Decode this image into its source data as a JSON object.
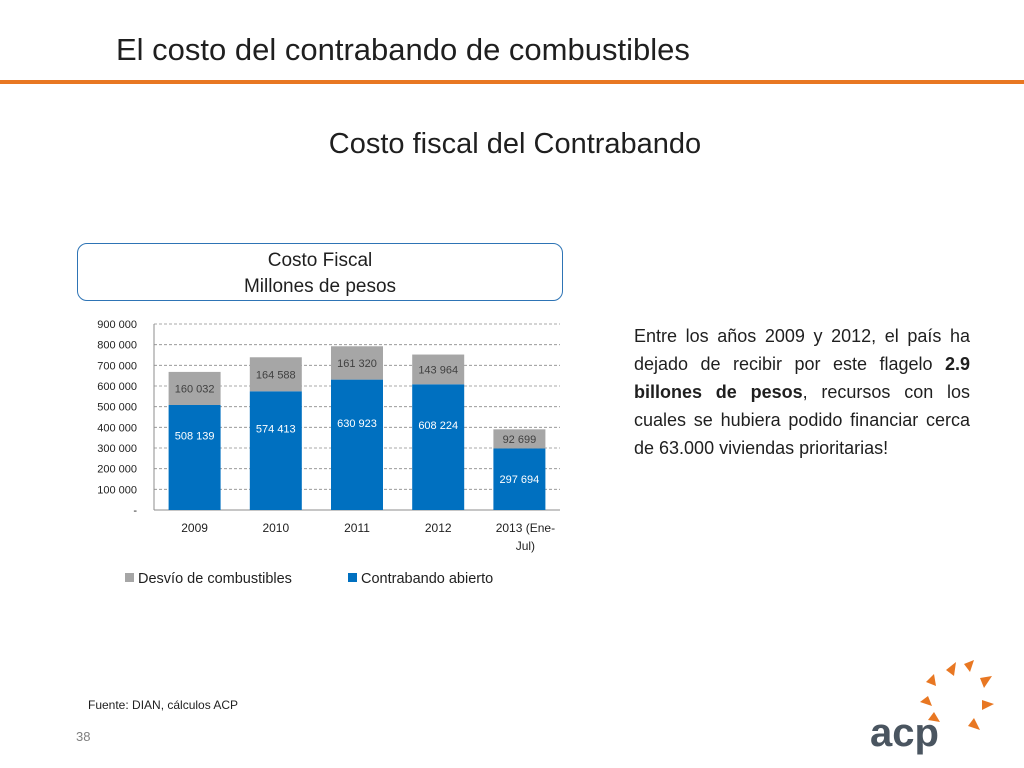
{
  "slide": {
    "title": "El costo del contrabando de combustibles",
    "subtitle": "Costo fiscal del Contrabando",
    "source": "Fuente: DIAN, cálculos ACP",
    "page_number": "38"
  },
  "chart_box": {
    "line1": "Costo Fiscal",
    "line2": "Millones de pesos"
  },
  "body_text": {
    "before": "Entre los años 2009 y 2012, el país ha dejado de recibir por este flagelo ",
    "bold": "2.9 billones de pesos",
    "after": ", recursos con los cuales se hubiera podido financiar cerca de 63.000 viviendas prioritarias!"
  },
  "logo": {
    "text": "acp",
    "name": "acp-logo"
  },
  "colors": {
    "accent": "#e87722",
    "series_open": "#0070c0",
    "series_desvio": "#a6a6a6",
    "border": "#2e74b5"
  },
  "chart_data": {
    "type": "bar",
    "stacked": true,
    "categories": [
      "2009",
      "2010",
      "2011",
      "2012",
      "2013 (Ene-Jul)"
    ],
    "category_lines": [
      [
        "2009"
      ],
      [
        "2010"
      ],
      [
        "2011"
      ],
      [
        "2012"
      ],
      [
        "2013 (Ene-",
        "Jul)"
      ]
    ],
    "series": [
      {
        "name": "Contrabando abierto",
        "values": [
          508139,
          574413,
          630923,
          608224,
          297694
        ],
        "labels": [
          "508 139",
          "574 413",
          "630 923",
          "608 224",
          "297 694"
        ],
        "color": "#0070c0"
      },
      {
        "name": "Desvío de combustibles",
        "values": [
          160032,
          164588,
          161320,
          143964,
          92699
        ],
        "labels": [
          "160 032",
          "164 588",
          "161 320",
          "143 964",
          "92 699"
        ],
        "color": "#a6a6a6"
      }
    ],
    "legend_order": [
      "Desvío de combustibles",
      "Contrabando abierto"
    ],
    "legend_position": "bottom",
    "ylim": [
      0,
      900000
    ],
    "yticks": [
      0,
      100000,
      200000,
      300000,
      400000,
      500000,
      600000,
      700000,
      800000,
      900000
    ],
    "ytick_labels": [
      "-",
      "100 000",
      "200 000",
      "300 000",
      "400 000",
      "500 000",
      "600 000",
      "700 000",
      "800 000",
      "900 000"
    ],
    "grid": true
  }
}
